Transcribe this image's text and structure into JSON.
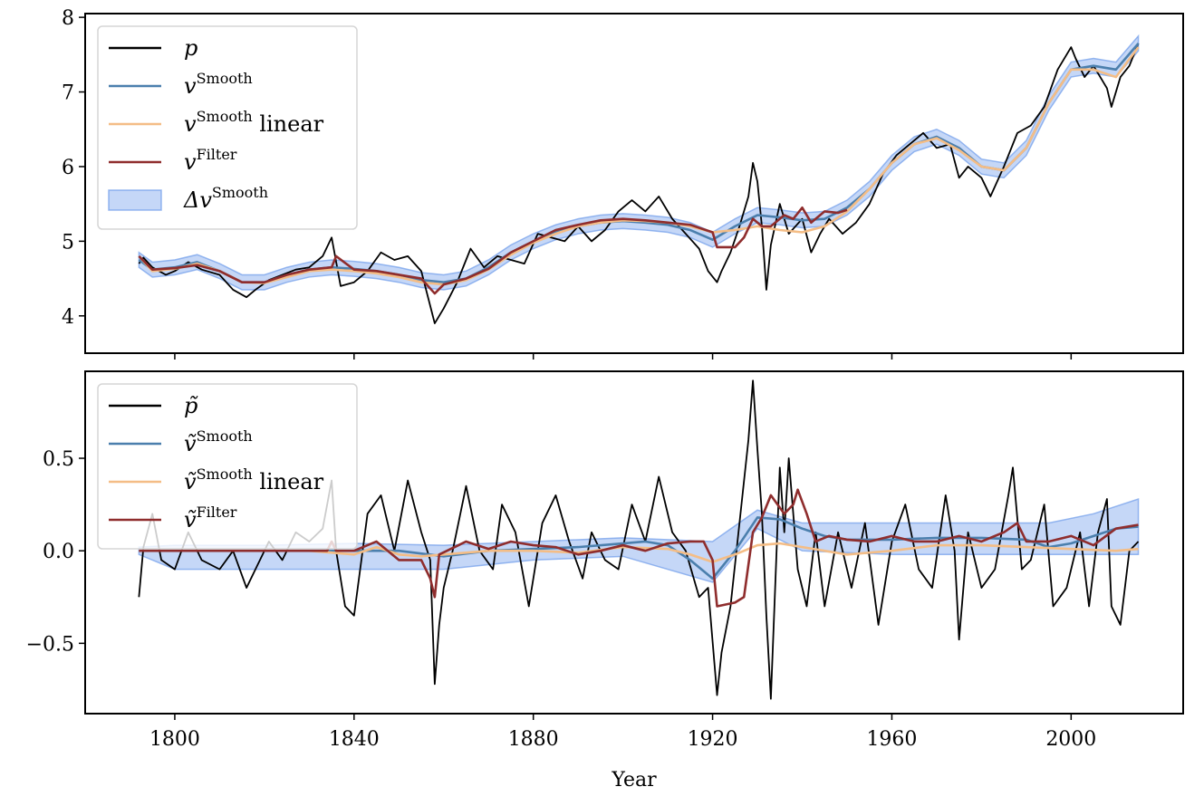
{
  "chart_data": [
    {
      "type": "line",
      "panel": "top",
      "xlim": [
        1780,
        2025
      ],
      "ylim": [
        3.5,
        8.05
      ],
      "xticks": [
        1800,
        1840,
        1880,
        1920,
        1960,
        2000
      ],
      "yticks": [
        4,
        5,
        6,
        7,
        8
      ],
      "ytick_labels": [
        "4",
        "5",
        "6",
        "7",
        "8"
      ],
      "grid": false,
      "legend_position": "top-left",
      "legend": [
        {
          "base": "p",
          "sup": "",
          "suffix": "",
          "color": "#000000",
          "kind": "line"
        },
        {
          "base": "v",
          "sup": "Smooth",
          "suffix": "",
          "color": "#4b7fad",
          "kind": "line"
        },
        {
          "base": "v",
          "sup": "Smooth",
          "suffix": " linear",
          "color": "#f4bd86",
          "kind": "line"
        },
        {
          "base": "v",
          "sup": "Filter",
          "suffix": "",
          "color": "#8f2d2d",
          "kind": "line"
        },
        {
          "base": "Δv",
          "sup": "Smooth",
          "suffix": "",
          "color": "#6d9bea",
          "kind": "band"
        }
      ],
      "band_halfwidth": 0.1,
      "series": [
        {
          "name": "p",
          "color": "#000000",
          "x": [
            1792,
            1793,
            1795,
            1798,
            1800,
            1803,
            1806,
            1810,
            1813,
            1816,
            1818,
            1821,
            1824,
            1827,
            1830,
            1833,
            1835,
            1837,
            1840,
            1843,
            1846,
            1849,
            1852,
            1855,
            1858,
            1860,
            1863,
            1866,
            1869,
            1872,
            1875,
            1878,
            1881,
            1884,
            1887,
            1890,
            1893,
            1896,
            1899,
            1902,
            1905,
            1908,
            1911,
            1914,
            1917,
            1919,
            1921,
            1922,
            1924,
            1926,
            1928,
            1929,
            1930,
            1931,
            1932,
            1933,
            1935,
            1937,
            1940,
            1942,
            1944,
            1946,
            1949,
            1952,
            1955,
            1958,
            1961,
            1964,
            1967,
            1970,
            1973,
            1975,
            1977,
            1980,
            1982,
            1985,
            1988,
            1991,
            1994,
            1997,
            2000,
            2001,
            2003,
            2005,
            2008,
            2009,
            2011,
            2013,
            2015
          ],
          "y": [
            4.7,
            4.78,
            4.65,
            4.55,
            4.6,
            4.72,
            4.62,
            4.55,
            4.35,
            4.25,
            4.35,
            4.48,
            4.55,
            4.62,
            4.65,
            4.8,
            5.05,
            4.4,
            4.45,
            4.6,
            4.85,
            4.75,
            4.8,
            4.6,
            3.9,
            4.1,
            4.45,
            4.9,
            4.65,
            4.8,
            4.75,
            4.7,
            5.1,
            5.05,
            5.0,
            5.2,
            5.0,
            5.15,
            5.4,
            5.55,
            5.4,
            5.6,
            5.3,
            5.1,
            4.9,
            4.6,
            4.45,
            4.6,
            4.85,
            5.2,
            5.6,
            6.05,
            5.8,
            5.2,
            4.35,
            4.95,
            5.5,
            5.1,
            5.3,
            4.85,
            5.1,
            5.3,
            5.1,
            5.25,
            5.5,
            5.9,
            6.15,
            6.3,
            6.45,
            6.25,
            6.3,
            5.85,
            6.0,
            5.85,
            5.6,
            6.0,
            6.45,
            6.55,
            6.8,
            7.3,
            7.6,
            7.45,
            7.2,
            7.35,
            7.05,
            6.8,
            7.2,
            7.35,
            7.65
          ]
        },
        {
          "name": "v Smooth",
          "color": "#4b7fad",
          "x": [
            1792,
            1795,
            1800,
            1805,
            1810,
            1815,
            1820,
            1825,
            1830,
            1835,
            1840,
            1845,
            1850,
            1855,
            1860,
            1865,
            1870,
            1875,
            1880,
            1885,
            1890,
            1895,
            1900,
            1905,
            1910,
            1915,
            1920,
            1925,
            1930,
            1935,
            1940,
            1945,
            1950,
            1955,
            1960,
            1965,
            1970,
            1975,
            1980,
            1985,
            1990,
            1995,
            2000,
            2005,
            2010,
            2015
          ],
          "y": [
            4.75,
            4.62,
            4.65,
            4.72,
            4.6,
            4.45,
            4.45,
            4.55,
            4.62,
            4.65,
            4.63,
            4.6,
            4.55,
            4.48,
            4.45,
            4.5,
            4.65,
            4.85,
            5.0,
            5.12,
            5.2,
            5.25,
            5.27,
            5.25,
            5.22,
            5.15,
            5.02,
            5.2,
            5.35,
            5.32,
            5.28,
            5.3,
            5.45,
            5.7,
            6.05,
            6.3,
            6.4,
            6.25,
            6.0,
            5.95,
            6.25,
            6.85,
            7.3,
            7.35,
            7.3,
            7.65
          ]
        },
        {
          "name": "v Smooth linear",
          "color": "#f4bd86",
          "x": [
            1792,
            1795,
            1800,
            1805,
            1810,
            1815,
            1820,
            1825,
            1830,
            1835,
            1840,
            1845,
            1850,
            1855,
            1860,
            1865,
            1870,
            1875,
            1880,
            1885,
            1890,
            1895,
            1900,
            1905,
            1910,
            1915,
            1920,
            1925,
            1930,
            1935,
            1940,
            1945,
            1950,
            1955,
            1960,
            1965,
            1970,
            1975,
            1980,
            1985,
            1990,
            1995,
            2000,
            2005,
            2010,
            2015
          ],
          "y": [
            4.8,
            4.6,
            4.63,
            4.7,
            4.6,
            4.45,
            4.44,
            4.52,
            4.6,
            4.62,
            4.6,
            4.57,
            4.52,
            4.45,
            4.42,
            4.48,
            4.62,
            4.82,
            4.98,
            5.1,
            5.2,
            5.25,
            5.28,
            5.27,
            5.25,
            5.2,
            5.12,
            5.15,
            5.2,
            5.15,
            5.12,
            5.2,
            5.4,
            5.7,
            6.05,
            6.3,
            6.38,
            6.22,
            6.0,
            5.95,
            6.25,
            6.85,
            7.3,
            7.3,
            7.2,
            7.6
          ]
        },
        {
          "name": "v Filter",
          "color": "#8f2d2d",
          "x": [
            1792,
            1795,
            1800,
            1805,
            1810,
            1815,
            1820,
            1825,
            1830,
            1835,
            1836,
            1840,
            1845,
            1850,
            1855,
            1858,
            1860,
            1865,
            1870,
            1875,
            1880,
            1885,
            1890,
            1895,
            1900,
            1905,
            1910,
            1915,
            1920,
            1921,
            1925,
            1927,
            1929,
            1931,
            1933,
            1936,
            1938,
            1940,
            1942,
            1945,
            1948,
            1950
          ],
          "y": [
            4.8,
            4.62,
            4.64,
            4.68,
            4.6,
            4.45,
            4.45,
            4.55,
            4.62,
            4.65,
            4.8,
            4.62,
            4.6,
            4.55,
            4.5,
            4.3,
            4.42,
            4.5,
            4.63,
            4.85,
            5.0,
            5.15,
            5.22,
            5.28,
            5.3,
            5.28,
            5.25,
            5.22,
            5.12,
            4.92,
            4.92,
            5.05,
            5.3,
            5.2,
            5.2,
            5.35,
            5.3,
            5.45,
            5.25,
            5.4,
            5.38,
            5.42
          ]
        }
      ]
    },
    {
      "type": "line",
      "panel": "bottom",
      "xlabel": "Year",
      "xlim": [
        1780,
        2025
      ],
      "ylim": [
        -0.88,
        0.97
      ],
      "xticks": [
        1800,
        1840,
        1880,
        1920,
        1960,
        2000
      ],
      "yticks": [
        -0.5,
        0.0,
        0.5
      ],
      "ytick_labels": [
        "−0.5",
        "0.0",
        "0.5"
      ],
      "grid": false,
      "legend_position": "top-left",
      "legend": [
        {
          "base": "p̃",
          "sup": "",
          "suffix": "",
          "color": "#000000",
          "kind": "line"
        },
        {
          "base": "ṽ",
          "sup": "Smooth",
          "suffix": "",
          "color": "#4b7fad",
          "kind": "line"
        },
        {
          "base": "ṽ",
          "sup": "Smooth",
          "suffix": " linear",
          "color": "#f4bd86",
          "kind": "line"
        },
        {
          "base": "ṽ",
          "sup": "Filter",
          "suffix": "",
          "color": "#8f2d2d",
          "kind": "line"
        }
      ],
      "band": {
        "x": [
          1792,
          1800,
          1820,
          1840,
          1860,
          1880,
          1900,
          1920,
          1930,
          1940,
          1960,
          1980,
          1995,
          2005,
          2015
        ],
        "upper": [
          0.02,
          0.03,
          0.03,
          0.04,
          0.03,
          0.05,
          0.07,
          0.05,
          0.22,
          0.15,
          0.15,
          0.15,
          0.15,
          0.2,
          0.28
        ],
        "lower": [
          -0.02,
          -0.1,
          -0.1,
          -0.1,
          -0.1,
          -0.05,
          -0.03,
          -0.17,
          0.12,
          0.0,
          -0.02,
          -0.02,
          -0.02,
          -0.02,
          -0.02
        ]
      },
      "series": [
        {
          "name": "p̃",
          "color": "#000000",
          "x": [
            1792,
            1793,
            1795,
            1797,
            1800,
            1803,
            1806,
            1810,
            1813,
            1816,
            1818,
            1821,
            1824,
            1827,
            1830,
            1833,
            1835,
            1836,
            1838,
            1840,
            1843,
            1846,
            1849,
            1852,
            1855,
            1857,
            1858,
            1859,
            1860,
            1862,
            1865,
            1868,
            1871,
            1873,
            1876,
            1879,
            1882,
            1885,
            1888,
            1891,
            1893,
            1896,
            1899,
            1902,
            1905,
            1908,
            1911,
            1914,
            1917,
            1919,
            1921,
            1922,
            1924,
            1926,
            1928,
            1929,
            1930,
            1931,
            1932,
            1933,
            1935,
            1936,
            1937,
            1939,
            1941,
            1943,
            1945,
            1948,
            1951,
            1954,
            1957,
            1960,
            1963,
            1966,
            1969,
            1972,
            1974,
            1975,
            1977,
            1980,
            1983,
            1986,
            1987,
            1989,
            1991,
            1994,
            1996,
            1999,
            2002,
            2004,
            2006,
            2008,
            2009,
            2011,
            2013,
            2015
          ],
          "y": [
            -0.25,
            0.02,
            0.2,
            -0.05,
            -0.1,
            0.1,
            -0.05,
            -0.1,
            0.0,
            -0.2,
            -0.1,
            0.05,
            -0.05,
            0.1,
            0.05,
            0.12,
            0.38,
            0.0,
            -0.3,
            -0.35,
            0.2,
            0.3,
            0.0,
            0.38,
            0.1,
            -0.05,
            -0.72,
            -0.4,
            -0.2,
            0.0,
            0.35,
            0.0,
            -0.1,
            0.25,
            0.1,
            -0.3,
            0.15,
            0.3,
            0.05,
            -0.15,
            0.1,
            -0.05,
            -0.1,
            0.25,
            0.05,
            0.4,
            0.1,
            0.0,
            -0.25,
            -0.2,
            -0.78,
            -0.55,
            -0.3,
            0.15,
            0.6,
            0.92,
            0.55,
            0.2,
            -0.35,
            -0.8,
            0.45,
            0.1,
            0.5,
            -0.1,
            -0.3,
            0.1,
            -0.3,
            0.1,
            -0.2,
            0.15,
            -0.4,
            0.05,
            0.25,
            -0.1,
            -0.2,
            0.3,
            0.0,
            -0.48,
            0.1,
            -0.2,
            -0.1,
            0.3,
            0.45,
            -0.1,
            -0.05,
            0.25,
            -0.3,
            -0.2,
            0.1,
            -0.3,
            0.1,
            0.28,
            -0.3,
            -0.4,
            0.0,
            0.05
          ]
        },
        {
          "name": "ṽ Smooth",
          "color": "#4b7fad",
          "x": [
            1792,
            1800,
            1810,
            1820,
            1830,
            1840,
            1850,
            1860,
            1870,
            1880,
            1890,
            1900,
            1905,
            1910,
            1915,
            1920,
            1925,
            1930,
            1935,
            1940,
            1945,
            1950,
            1960,
            1970,
            1980,
            1990,
            1995,
            2000,
            2005,
            2010,
            2015
          ],
          "y": [
            0.0,
            0.0,
            0.0,
            0.0,
            0.0,
            0.0,
            0.0,
            -0.03,
            0.0,
            0.01,
            0.02,
            0.04,
            0.05,
            0.03,
            -0.05,
            -0.15,
            0.0,
            0.18,
            0.17,
            0.12,
            0.08,
            0.06,
            0.06,
            0.07,
            0.07,
            0.06,
            0.02,
            0.04,
            0.08,
            0.12,
            0.13
          ]
        },
        {
          "name": "ṽ Smooth linear",
          "color": "#f4bd86",
          "x": [
            1792,
            1800,
            1810,
            1820,
            1830,
            1840,
            1845,
            1850,
            1855,
            1860,
            1870,
            1880,
            1890,
            1900,
            1910,
            1915,
            1920,
            1925,
            1930,
            1935,
            1940,
            1950,
            1960,
            1970,
            1980,
            1990,
            2000,
            2010,
            2015
          ],
          "y": [
            0.0,
            0.0,
            0.0,
            0.0,
            0.0,
            -0.02,
            0.02,
            -0.02,
            -0.03,
            -0.02,
            0.0,
            0.0,
            -0.01,
            0.02,
            0.01,
            -0.02,
            -0.06,
            -0.02,
            0.03,
            0.04,
            0.02,
            -0.02,
            0.0,
            0.03,
            0.03,
            0.02,
            0.01,
            0.0,
            0.01
          ]
        },
        {
          "name": "ṽ Filter",
          "color": "#8f2d2d",
          "x": [
            1792,
            1800,
            1810,
            1820,
            1830,
            1834,
            1835,
            1836,
            1840,
            1845,
            1850,
            1855,
            1857,
            1858,
            1859,
            1865,
            1870,
            1875,
            1880,
            1885,
            1890,
            1895,
            1900,
            1905,
            1910,
            1915,
            1918,
            1920,
            1921,
            1925,
            1927,
            1929,
            1931,
            1933,
            1936,
            1938,
            1939,
            1941,
            1943,
            1946,
            1950,
            1955,
            1960,
            1965,
            1970,
            1975,
            1980,
            1985,
            1988,
            1990,
            1995,
            2000,
            2005,
            2010,
            2015
          ],
          "y": [
            0.0,
            0.0,
            0.0,
            0.0,
            0.0,
            0.0,
            0.05,
            0.0,
            0.0,
            0.05,
            -0.05,
            -0.05,
            -0.15,
            -0.25,
            -0.02,
            0.05,
            0.01,
            0.05,
            0.03,
            0.02,
            -0.02,
            0.0,
            0.03,
            0.0,
            0.04,
            0.05,
            0.05,
            -0.05,
            -0.3,
            -0.28,
            -0.25,
            0.1,
            0.18,
            0.3,
            0.2,
            0.25,
            0.33,
            0.2,
            0.05,
            0.08,
            0.06,
            0.05,
            0.08,
            0.05,
            0.05,
            0.08,
            0.05,
            0.1,
            0.15,
            0.05,
            0.05,
            0.08,
            0.03,
            0.12,
            0.14
          ]
        }
      ]
    }
  ]
}
